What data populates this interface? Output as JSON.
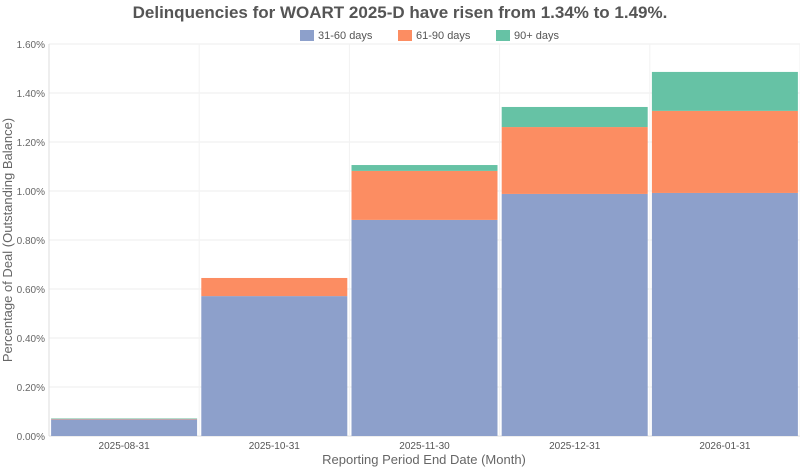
{
  "chart_data": {
    "type": "bar",
    "stacked": true,
    "title": "Delinquencies for WOART 2025-D have risen from 1.34% to 1.49%.",
    "xlabel": "Reporting Period End Date (Month)",
    "ylabel": "Percentage of Deal (Outstanding Balance)",
    "ylim": [
      0,
      1.6
    ],
    "yticks": [
      "0.00%",
      "0.20%",
      "0.40%",
      "0.60%",
      "0.80%",
      "1.00%",
      "1.20%",
      "1.40%",
      "1.60%"
    ],
    "grid": true,
    "legend_position": "top",
    "categories": [
      "2025-08-31",
      "2025-10-31",
      "2025-11-30",
      "2025-12-31",
      "2026-01-31"
    ],
    "series": [
      {
        "name": "31-60 days",
        "color": "#8da0cb",
        "values": [
          0.068,
          0.571,
          0.882,
          0.988,
          0.992
        ]
      },
      {
        "name": "61-90 days",
        "color": "#fc8d62",
        "values": [
          0.002,
          0.074,
          0.2,
          0.273,
          0.335
        ]
      },
      {
        "name": "90+ days",
        "color": "#66c2a5",
        "values": [
          0.002,
          0.0,
          0.024,
          0.082,
          0.159
        ]
      }
    ]
  }
}
